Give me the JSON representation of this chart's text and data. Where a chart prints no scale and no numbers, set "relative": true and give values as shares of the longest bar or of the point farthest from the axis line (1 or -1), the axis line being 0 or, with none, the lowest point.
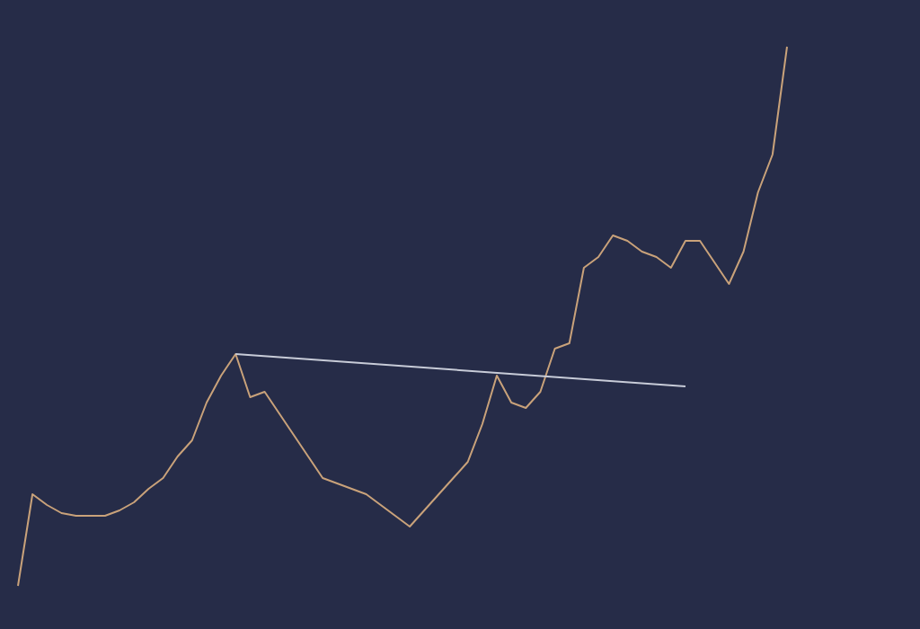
{
  "chart_data": {
    "type": "line",
    "relative": true,
    "grid": false,
    "line_style": "solid",
    "categories": [
      null,
      null,
      null,
      null,
      null,
      null,
      null,
      null,
      null,
      null,
      null,
      null,
      null,
      null,
      null,
      null,
      null,
      null,
      null,
      null,
      null,
      null,
      null,
      null,
      null,
      null,
      null,
      null,
      null,
      null,
      null,
      null,
      null,
      null,
      null,
      null,
      null,
      null,
      null,
      null,
      null,
      null,
      null,
      null,
      null,
      null,
      null,
      null,
      null,
      null,
      null,
      null,
      null,
      null
    ],
    "series": [
      {
        "color": "#c9a27a",
        "values": [
          0,
          0.17,
          0.15,
          0.135,
          0.13,
          0.13,
          0.13,
          0.14,
          0.155,
          0.18,
          0.2,
          0.24,
          0.27,
          0.34,
          0.39,
          0.43,
          0.35,
          0.36,
          0.32,
          0.28,
          0.24,
          0.2,
          0.19,
          0.18,
          0.17,
          0.15,
          0.13,
          0.11,
          0.14,
          0.17,
          0.2,
          0.23,
          0.3,
          0.39,
          0.34,
          0.33,
          0.36,
          0.44,
          0.45,
          0.59,
          0.61,
          0.65,
          0.64,
          0.62,
          0.61,
          0.59,
          0.64,
          0.64,
          0.6,
          0.56,
          0.62,
          0.73,
          0.8,
          1
        ]
      },
      {
        "type": "line",
        "color": "#c8ccd8",
        "values": [
          null,
          null,
          null,
          null,
          null,
          null,
          null,
          null,
          null,
          null,
          null,
          null,
          null,
          null,
          null,
          0.43,
          null,
          null,
          null,
          null,
          null,
          null,
          null,
          null,
          null,
          null,
          null,
          null,
          null,
          null,
          null,
          null,
          null,
          null,
          null,
          null,
          null,
          null,
          null,
          null,
          null,
          null,
          null,
          null,
          null,
          null,
          0.37,
          null,
          null,
          null,
          null,
          null,
          null,
          null
        ]
      }
    ]
  }
}
